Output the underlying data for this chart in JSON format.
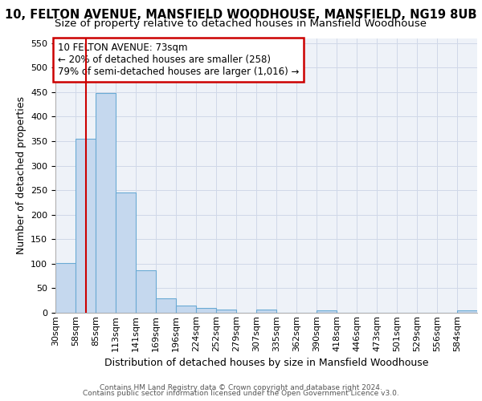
{
  "title_line1": "10, FELTON AVENUE, MANSFIELD WOODHOUSE, MANSFIELD, NG19 8UB",
  "title_line2": "Size of property relative to detached houses in Mansfield Woodhouse",
  "xlabel": "Distribution of detached houses by size in Mansfield Woodhouse",
  "ylabel": "Number of detached properties",
  "footer_line1": "Contains HM Land Registry data © Crown copyright and database right 2024.",
  "footer_line2": "Contains public sector information licensed under the Open Government Licence v3.0.",
  "annotation_line1": "10 FELTON AVENUE: 73sqm",
  "annotation_line2": "← 20% of detached houses are smaller (258)",
  "annotation_line3": "79% of semi-detached houses are larger (1,016) →",
  "bar_categories": [
    "30sqm",
    "58sqm",
    "85sqm",
    "113sqm",
    "141sqm",
    "169sqm",
    "196sqm",
    "224sqm",
    "252sqm",
    "279sqm",
    "307sqm",
    "335sqm",
    "362sqm",
    "390sqm",
    "418sqm",
    "446sqm",
    "473sqm",
    "501sqm",
    "529sqm",
    "556sqm",
    "584sqm"
  ],
  "bar_values": [
    102,
    355,
    448,
    245,
    87,
    30,
    14,
    9,
    6,
    0,
    6,
    0,
    0,
    5,
    0,
    0,
    0,
    0,
    0,
    0,
    5
  ],
  "bar_color": "#c5d8ee",
  "bar_edgecolor": "#6aaad4",
  "vline_index": 1.5,
  "vline_color": "#cc0000",
  "ylim": [
    0,
    560
  ],
  "yticks": [
    0,
    50,
    100,
    150,
    200,
    250,
    300,
    350,
    400,
    450,
    500,
    550
  ],
  "grid_color": "#d0d8e8",
  "bg_color": "#eef2f8",
  "annotation_box_edgecolor": "#cc0000",
  "title_fontsize": 10.5,
  "subtitle_fontsize": 9.5,
  "axis_label_fontsize": 9,
  "tick_fontsize": 8,
  "annotation_fontsize": 8.5,
  "footer_fontsize": 6.5
}
